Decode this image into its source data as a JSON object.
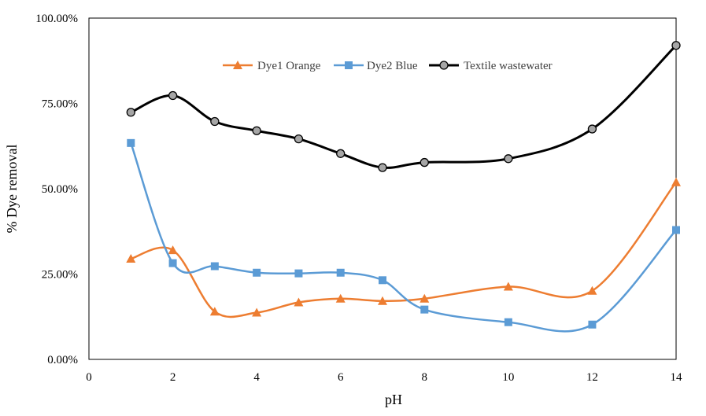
{
  "chart_data": {
    "type": "line",
    "title": "",
    "xlabel": "pH",
    "ylabel": "% Dye removal",
    "xlim": [
      0,
      14
    ],
    "ylim": [
      0,
      1
    ],
    "x_ticks": [
      0,
      2,
      4,
      6,
      8,
      10,
      12,
      14
    ],
    "y_ticks": [
      0,
      0.25,
      0.5,
      0.75,
      1.0
    ],
    "x_tick_labels": [
      "0",
      "2",
      "4",
      "6",
      "8",
      "10",
      "12",
      "14"
    ],
    "y_tick_labels": [
      "0.00%",
      "25.00%",
      "50.00%",
      "75.00%",
      "100.00%"
    ],
    "grid": false,
    "legend_position": "top-center",
    "x": [
      1,
      2,
      3,
      4,
      5,
      6,
      7,
      8,
      10,
      12,
      14
    ],
    "series": [
      {
        "name": "Dye1 Orange",
        "color": "#ED7D31",
        "marker": "triangle",
        "values": [
          0.295,
          0.32,
          0.14,
          0.137,
          0.167,
          0.178,
          0.171,
          0.178,
          0.213,
          0.201,
          0.519
        ]
      },
      {
        "name": "Dye2 Blue",
        "color": "#5B9BD5",
        "marker": "square",
        "values": [
          0.634,
          0.282,
          0.273,
          0.254,
          0.252,
          0.254,
          0.232,
          0.146,
          0.109,
          0.102,
          0.379
        ]
      },
      {
        "name": "Textile wastewater",
        "color": "#000000",
        "marker": "circle",
        "values": [
          0.724,
          0.773,
          0.697,
          0.67,
          0.646,
          0.603,
          0.562,
          0.577,
          0.588,
          0.675,
          0.92
        ]
      }
    ]
  }
}
